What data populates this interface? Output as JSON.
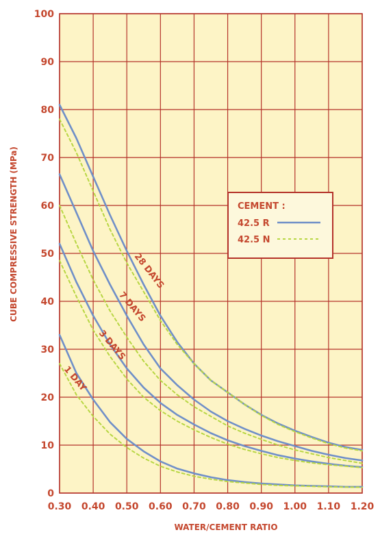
{
  "colors": {
    "plot_bg": "#fdf4c6",
    "grid": "#b4322a",
    "text": "#c4472e",
    "series_r": "#6f8fc8",
    "series_n": "#b7d642",
    "legend_bg": "#fdf8dc"
  },
  "chart_data": {
    "type": "line",
    "xlabel": "WATER/CEMENT RATIO",
    "ylabel": "CUBE COMPRESSIVE STRENGTH (MPa)",
    "xlim": [
      0.3,
      1.2
    ],
    "ylim": [
      0,
      100
    ],
    "x_ticks": [
      "0.30",
      "0.40",
      "0.50",
      "0.60",
      "0.70",
      "0.80",
      "0.90",
      "1.00",
      "1.10",
      "1.20"
    ],
    "y_ticks": [
      "0",
      "10",
      "20",
      "30",
      "40",
      "50",
      "60",
      "70",
      "80",
      "90",
      "100"
    ],
    "grid": true,
    "legend": {
      "title": "CEMENT :",
      "placement": "right",
      "entries": [
        {
          "label": "42.5 R",
          "style": "solid"
        },
        {
          "label": "42.5 N",
          "style": "dashed"
        }
      ]
    },
    "curves": [
      {
        "label": "28 DAYS",
        "series": [
          {
            "name": "42.5 R",
            "x": [
              0.3,
              0.35,
              0.4,
              0.45,
              0.5,
              0.55,
              0.6,
              0.65,
              0.7,
              0.75,
              0.8,
              0.85,
              0.9,
              0.95,
              1.0,
              1.05,
              1.1,
              1.15,
              1.2
            ],
            "y": [
              81,
              74,
              66,
              58,
              50.5,
              43.5,
              37,
              31.5,
              27,
              23.5,
              21,
              18.5,
              16.3,
              14.5,
              13,
              11.7,
              10.5,
              9.6,
              9
            ]
          },
          {
            "name": "42.5 N",
            "x": [
              0.3,
              0.35,
              0.4,
              0.45,
              0.5,
              0.55,
              0.6,
              0.65,
              0.7,
              0.75,
              0.8,
              0.85,
              0.9,
              0.95,
              1.0,
              1.05,
              1.1,
              1.15,
              1.2
            ],
            "y": [
              78,
              71,
              63,
              55,
              48,
              42,
              36,
              31,
              27,
              23.5,
              21,
              18.5,
              16.2,
              14.3,
              12.8,
              11.5,
              10.3,
              9.4,
              8.8
            ]
          }
        ]
      },
      {
        "label": "7 DAYS",
        "series": [
          {
            "name": "42.5 R",
            "x": [
              0.3,
              0.35,
              0.4,
              0.45,
              0.5,
              0.55,
              0.6,
              0.65,
              0.7,
              0.75,
              0.8,
              0.85,
              0.9,
              0.95,
              1.0,
              1.05,
              1.1,
              1.15,
              1.2
            ],
            "y": [
              66.5,
              58.5,
              50.5,
              43.5,
              37,
              31,
              26,
              22.5,
              19.5,
              17,
              15,
              13.4,
              12,
              10.8,
              9.8,
              8.8,
              8,
              7.3,
              6.8
            ]
          },
          {
            "name": "42.5 N",
            "x": [
              0.3,
              0.35,
              0.4,
              0.45,
              0.5,
              0.55,
              0.6,
              0.65,
              0.7,
              0.75,
              0.8,
              0.85,
              0.9,
              0.95,
              1.0,
              1.05,
              1.1,
              1.15,
              1.2
            ],
            "y": [
              60,
              52,
              44.5,
              38,
              32.5,
              27.5,
              23.5,
              20.5,
              18,
              16,
              14,
              12.5,
              11.2,
              10,
              9,
              8.2,
              7.4,
              6.8,
              6.2
            ]
          }
        ]
      },
      {
        "label": "3 DAYS",
        "series": [
          {
            "name": "42.5 R",
            "x": [
              0.3,
              0.35,
              0.4,
              0.45,
              0.5,
              0.55,
              0.6,
              0.65,
              0.7,
              0.75,
              0.8,
              0.85,
              0.9,
              0.95,
              1.0,
              1.05,
              1.1,
              1.15,
              1.2
            ],
            "y": [
              52,
              44,
              37,
              31,
              26,
              22,
              18.8,
              16.3,
              14.3,
              12.5,
              11,
              9.8,
              8.8,
              7.9,
              7.2,
              6.6,
              6.1,
              5.7,
              5.4
            ]
          },
          {
            "name": "42.5 N",
            "x": [
              0.3,
              0.35,
              0.4,
              0.45,
              0.5,
              0.55,
              0.6,
              0.65,
              0.7,
              0.75,
              0.8,
              0.85,
              0.9,
              0.95,
              1.0,
              1.05,
              1.1,
              1.15,
              1.2
            ],
            "y": [
              48.5,
              41,
              34,
              28.5,
              23.8,
              20,
              17.2,
              15,
              13.2,
              11.6,
              10.2,
              9.1,
              8.2,
              7.4,
              6.8,
              6.3,
              5.9,
              5.6,
              5.3
            ]
          }
        ]
      },
      {
        "label": "1 DAY",
        "series": [
          {
            "name": "42.5 R",
            "x": [
              0.3,
              0.35,
              0.4,
              0.45,
              0.5,
              0.55,
              0.6,
              0.65,
              0.7,
              0.75,
              0.8,
              0.85,
              0.9,
              0.95,
              1.0,
              1.05,
              1.1,
              1.15,
              1.2
            ],
            "y": [
              33,
              25,
              19.5,
              14.8,
              11.3,
              8.7,
              6.6,
              5.1,
              4.1,
              3.3,
              2.7,
              2.3,
              2,
              1.8,
              1.6,
              1.5,
              1.4,
              1.3,
              1.3
            ]
          },
          {
            "name": "42.5 N",
            "x": [
              0.3,
              0.35,
              0.4,
              0.45,
              0.5,
              0.55,
              0.6,
              0.65,
              0.7,
              0.75,
              0.8,
              0.85,
              0.9,
              0.95,
              1.0,
              1.05,
              1.1,
              1.15,
              1.2
            ],
            "y": [
              27,
              20.5,
              16,
              12.3,
              9.5,
              7.3,
              5.6,
              4.4,
              3.5,
              2.9,
              2.4,
              2.1,
              1.8,
              1.6,
              1.5,
              1.4,
              1.3,
              1.25,
              1.2
            ]
          }
        ]
      }
    ],
    "curve_labels": [
      {
        "text": "28 DAYS",
        "x": 0.56,
        "y": 46,
        "angle": 52
      },
      {
        "text": "7 DAYS",
        "x": 0.51,
        "y": 38.5,
        "angle": 50
      },
      {
        "text": "3 DAYS",
        "x": 0.45,
        "y": 30.5,
        "angle": 50
      },
      {
        "text": "1 DAY",
        "x": 0.34,
        "y": 23.5,
        "angle": 50
      }
    ]
  }
}
